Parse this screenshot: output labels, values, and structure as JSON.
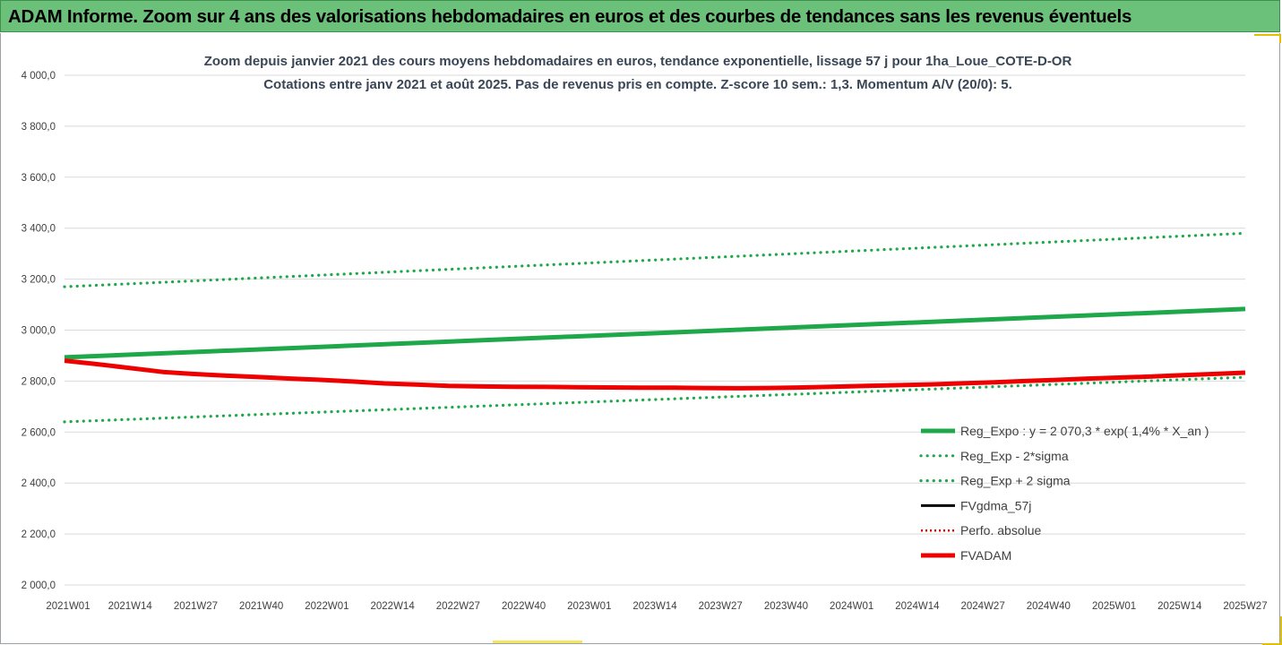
{
  "header": {
    "title": "ADAM Informe. Zoom sur 4 ans des valorisations hebdomadaires en euros et des courbes de tendances sans les revenus éventuels"
  },
  "colors": {
    "header_bg": "#6cc17a",
    "green": "#1fa84a",
    "red": "#ee0000",
    "black": "#000000"
  },
  "chart_data": {
    "type": "line",
    "title": "Zoom depuis janvier 2021 des cours moyens hebdomadaires en euros, tendance exponentielle, lissage 57 j pour 1ha_Loue_COTE-D-OR",
    "subtitle": "Cotations entre janv 2021 et août 2025.  Pas de revenus pris en compte. Z-score 10 sem.: 1,3. Momentum A/V (20/0): 5.",
    "xlabel": "",
    "ylabel": "",
    "ylim": [
      2000,
      4000
    ],
    "yticks": [
      "4 000,0",
      "3 800,0",
      "3 600,0",
      "3 400,0",
      "3 200,0",
      "3 000,0",
      "2 800,0",
      "2 600,0",
      "2 400,0",
      "2 200,0",
      "2 000,0"
    ],
    "ytick_values": [
      4000,
      3800,
      3600,
      3400,
      3200,
      3000,
      2800,
      2600,
      2400,
      2200,
      2000
    ],
    "xticks": [
      "2021W01",
      "2021W14",
      "2021W27",
      "2021W40",
      "2022W01",
      "2022W14",
      "2022W27",
      "2022W40",
      "2023W01",
      "2023W14",
      "2023W27",
      "2023W40",
      "2024W01",
      "2024W14",
      "2024W27",
      "2024W40",
      "2025W01",
      "2025W14",
      "2025W27"
    ],
    "x_range_weeks": [
      0,
      240
    ],
    "grid": true,
    "legend_position": "bottom-right",
    "series": [
      {
        "name": "Reg_Expo : y = 2 070,3 * exp( 1,4% *  X_an )",
        "style": "solid-thick",
        "color": "#1fa84a",
        "x": [
          0,
          240
        ],
        "values": [
          2893,
          3083
        ]
      },
      {
        "name": "Reg_Exp - 2*sigma",
        "style": "dotted",
        "color": "#1fa84a",
        "x": [
          0,
          240
        ],
        "values": [
          2640,
          2815
        ]
      },
      {
        "name": "Reg_Exp + 2 sigma",
        "style": "dotted",
        "color": "#1fa84a",
        "x": [
          0,
          240
        ],
        "values": [
          3170,
          3380
        ]
      },
      {
        "name": "FVgdma_57j",
        "style": "solid",
        "color": "#000000",
        "x": [
          0,
          240
        ],
        "values": [
          2880,
          2833
        ]
      },
      {
        "name": "Perfo. absolue",
        "style": "dotted-thin",
        "color": "#ee0000",
        "x": [
          0,
          240
        ],
        "values": [
          2880,
          2833
        ]
      },
      {
        "name": "FVADAM",
        "style": "solid-thick",
        "color": "#ee0000",
        "x": [
          0,
          6,
          13,
          20,
          26,
          33,
          39,
          46,
          52,
          59,
          65,
          72,
          78,
          85,
          91,
          98,
          104,
          111,
          117,
          124,
          130,
          137,
          143,
          150,
          156,
          163,
          169,
          176,
          182,
          189,
          195,
          202,
          208,
          215,
          221,
          228,
          234,
          240
        ],
        "values": [
          2880,
          2868,
          2852,
          2836,
          2828,
          2821,
          2816,
          2810,
          2805,
          2798,
          2791,
          2786,
          2781,
          2779,
          2778,
          2777,
          2776,
          2775,
          2774,
          2774,
          2773,
          2772,
          2773,
          2775,
          2778,
          2781,
          2784,
          2787,
          2791,
          2795,
          2800,
          2805,
          2810,
          2814,
          2818,
          2824,
          2828,
          2833
        ]
      }
    ]
  }
}
